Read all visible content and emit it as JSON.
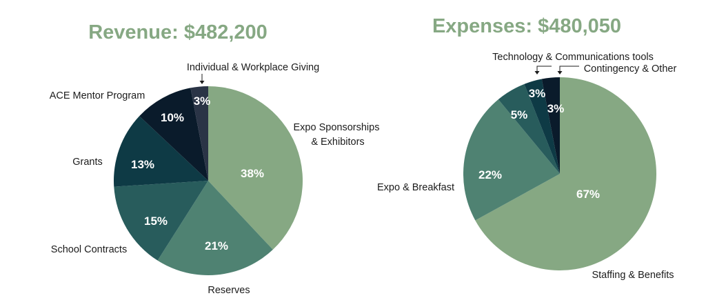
{
  "chart_data": [
    {
      "type": "pie",
      "title": "Revenue: $482,200",
      "start": "top",
      "direction": "clockwise",
      "slices": [
        {
          "label": "Expo Sponsorships & Exhibitors",
          "value": 38,
          "value_label": "38%",
          "color": "#86a883"
        },
        {
          "label": "Reserves",
          "value": 21,
          "value_label": "21%",
          "color": "#4f8272"
        },
        {
          "label": "School Contracts",
          "value": 15,
          "value_label": "15%",
          "color": "#285c5c"
        },
        {
          "label": "Grants",
          "value": 13,
          "value_label": "13%",
          "color": "#0e3a45"
        },
        {
          "label": "ACE Mentor Program",
          "value": 10,
          "value_label": "10%",
          "color": "#0a1b2b"
        },
        {
          "label": "Individual & Workplace Giving",
          "value": 3,
          "value_label": "3%",
          "color": "#2a3446"
        }
      ]
    },
    {
      "type": "pie",
      "title": "Expenses: $480,050",
      "start": "top",
      "direction": "clockwise",
      "slices": [
        {
          "label": "Staffing & Benefits",
          "value": 67,
          "value_label": "67%",
          "color": "#86a883"
        },
        {
          "label": "Expo & Breakfast",
          "value": 22,
          "value_label": "22%",
          "color": "#4f8272"
        },
        {
          "label": "",
          "value": 5,
          "value_label": "5%",
          "color": "#285c5c"
        },
        {
          "label": "Technology & Communications tools",
          "value": 3,
          "value_label": "3%",
          "color": "#0e3a45"
        },
        {
          "label": "Contingency & Other",
          "value": 3,
          "value_label": "3%",
          "color": "#0a1b2b"
        }
      ]
    }
  ]
}
